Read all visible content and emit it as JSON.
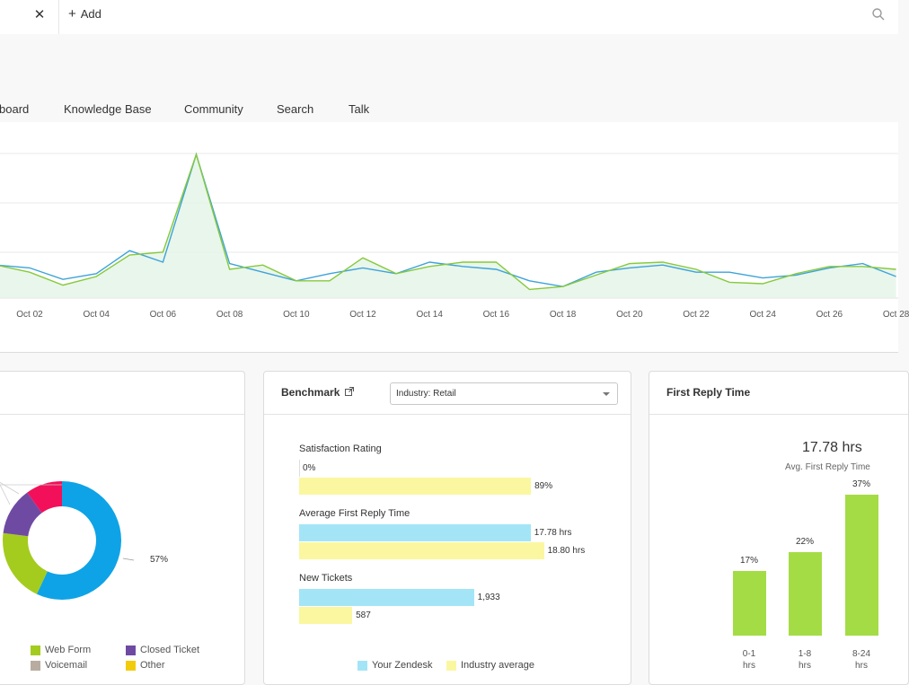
{
  "topbar": {
    "close_glyph": "✕",
    "add_label": "Add",
    "plus_glyph": "+",
    "icons": {
      "search": "search-icon",
      "close": "close-icon",
      "plus": "plus-icon"
    }
  },
  "nav": {
    "items": [
      "board",
      "Knowledge Base",
      "Community",
      "Search",
      "Talk"
    ]
  },
  "chart_data": [
    {
      "type": "line",
      "x_ticks": [
        "Oct 02",
        "Oct 04",
        "Oct 06",
        "Oct 08",
        "Oct 10",
        "Oct 12",
        "Oct 14",
        "Oct 16",
        "Oct 18",
        "Oct 20",
        "Oct 22",
        "Oct 24",
        "Oct 26",
        "Oct 28"
      ],
      "x_start": 1,
      "x_end": 28,
      "x": [
        1,
        2,
        3,
        4,
        5,
        6,
        7,
        8,
        9,
        10,
        11,
        12,
        13,
        14,
        15,
        16,
        17,
        18,
        19,
        20,
        21,
        22,
        23,
        24,
        25,
        26,
        27,
        28
      ],
      "series": [
        {
          "color": "#3da3d9",
          "values": [
            0.23,
            0.21,
            0.13,
            0.17,
            0.33,
            0.25,
            1.0,
            0.24,
            0.18,
            0.12,
            0.17,
            0.21,
            0.17,
            0.25,
            0.22,
            0.2,
            0.12,
            0.08,
            0.18,
            0.21,
            0.23,
            0.18,
            0.18,
            0.14,
            0.16,
            0.21,
            0.24,
            0.15
          ]
        },
        {
          "color": "#86c93c",
          "values": [
            0.23,
            0.18,
            0.09,
            0.15,
            0.3,
            0.32,
            1.0,
            0.2,
            0.23,
            0.12,
            0.12,
            0.28,
            0.17,
            0.22,
            0.25,
            0.25,
            0.06,
            0.08,
            0.16,
            0.24,
            0.25,
            0.2,
            0.11,
            0.1,
            0.17,
            0.22,
            0.22,
            0.2
          ]
        }
      ],
      "fill_color": "#e3f4e6",
      "ylim": [
        0,
        1.2
      ],
      "grid": true
    },
    {
      "type": "pie",
      "title": "",
      "data_label": "57%",
      "legend": [
        {
          "label": "Web Form",
          "color": "#a4cc1e"
        },
        {
          "label": "Closed Ticket",
          "color": "#6f4aa3"
        },
        {
          "label": "Voicemail",
          "color": "#b8aca0"
        },
        {
          "label": "Other",
          "color": "#f2cc0c"
        }
      ],
      "slices": [
        {
          "color": "#0ea3e6",
          "value": 57
        },
        {
          "color": "#a4cc1e",
          "value": 20
        },
        {
          "color": "#6f4aa3",
          "value": 13
        },
        {
          "color": "#f2105a",
          "value": 10
        }
      ]
    },
    {
      "type": "bar",
      "title": "Benchmark",
      "select": "Industry: Retail",
      "metrics": [
        {
          "label": "Satisfaction Rating",
          "yours": {
            "value": 0,
            "label": "0%"
          },
          "industry": {
            "value": 89,
            "label": "89%"
          },
          "max": 100
        },
        {
          "label": "Average First Reply Time",
          "yours": {
            "value": 17.78,
            "label": "17.78 hrs"
          },
          "industry": {
            "value": 18.8,
            "label": "18.80 hrs"
          },
          "max": 20
        },
        {
          "label": "New Tickets",
          "yours": {
            "value": 1933,
            "label": "1,933"
          },
          "industry": {
            "value": 587,
            "label": "587"
          },
          "max": 2880
        }
      ],
      "legend": [
        {
          "label": "Your Zendesk",
          "color": "#a3e5f7"
        },
        {
          "label": "Industry average",
          "color": "#fbf7a0"
        }
      ]
    },
    {
      "type": "bar",
      "title": "First Reply Time",
      "headline": "17.78 hrs",
      "sub": "Avg. First Reply Time",
      "categories": [
        [
          "0-1",
          "hrs"
        ],
        [
          "1-8",
          "hrs"
        ],
        [
          "8-24",
          "hrs"
        ]
      ],
      "values": [
        17,
        22,
        37
      ],
      "labels": [
        "17%",
        "22%",
        "37%"
      ],
      "color": "#a4dc46",
      "ylim": [
        0,
        40
      ]
    }
  ]
}
